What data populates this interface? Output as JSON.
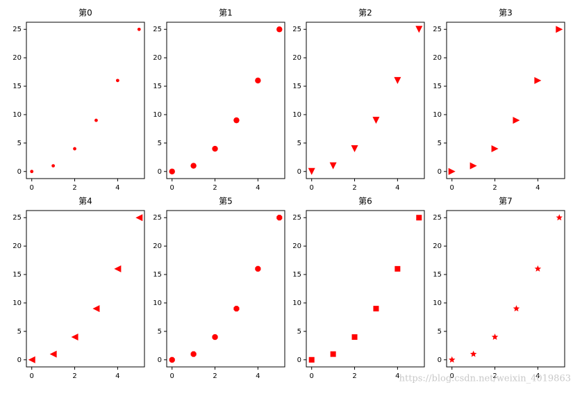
{
  "chart_data": [
    {
      "type": "scatter",
      "title": "第0",
      "marker": ".",
      "color": "#ff0000",
      "x": [
        0,
        1,
        2,
        3,
        4,
        5
      ],
      "values": [
        0,
        1,
        4,
        9,
        16,
        25
      ],
      "xlim": [
        -0.25,
        5.25
      ],
      "ylim": [
        -1.25,
        26.25
      ],
      "xticks": [
        0,
        2,
        4
      ],
      "yticks": [
        0,
        5,
        10,
        15,
        20,
        25
      ]
    },
    {
      "type": "scatter",
      "title": "第1",
      "marker": "o",
      "color": "#ff0000",
      "x": [
        0,
        1,
        2,
        3,
        4,
        5
      ],
      "values": [
        0,
        1,
        4,
        9,
        16,
        25
      ],
      "xlim": [
        -0.25,
        5.25
      ],
      "ylim": [
        -1.25,
        26.25
      ],
      "xticks": [
        0,
        2,
        4
      ],
      "yticks": [
        0,
        5,
        10,
        15,
        20,
        25
      ]
    },
    {
      "type": "scatter",
      "title": "第2",
      "marker": "v",
      "color": "#ff0000",
      "x": [
        0,
        1,
        2,
        3,
        4,
        5
      ],
      "values": [
        0,
        1,
        4,
        9,
        16,
        25
      ],
      "xlim": [
        -0.25,
        5.25
      ],
      "ylim": [
        -1.25,
        26.25
      ],
      "xticks": [
        0,
        2,
        4
      ],
      "yticks": [
        0,
        5,
        10,
        15,
        20,
        25
      ]
    },
    {
      "type": "scatter",
      "title": "第3",
      "marker": ">",
      "color": "#ff0000",
      "x": [
        0,
        1,
        2,
        3,
        4,
        5
      ],
      "values": [
        0,
        1,
        4,
        9,
        16,
        25
      ],
      "xlim": [
        -0.25,
        5.25
      ],
      "ylim": [
        -1.25,
        26.25
      ],
      "xticks": [
        0,
        2,
        4
      ],
      "yticks": [
        0,
        5,
        10,
        15,
        20,
        25
      ]
    },
    {
      "type": "scatter",
      "title": "第4",
      "marker": "<",
      "color": "#ff0000",
      "x": [
        0,
        1,
        2,
        3,
        4,
        5
      ],
      "values": [
        0,
        1,
        4,
        9,
        16,
        25
      ],
      "xlim": [
        -0.25,
        5.25
      ],
      "ylim": [
        -1.25,
        26.25
      ],
      "xticks": [
        0,
        2,
        4
      ],
      "yticks": [
        0,
        5,
        10,
        15,
        20,
        25
      ]
    },
    {
      "type": "scatter",
      "title": "第5",
      "marker": "8",
      "color": "#ff0000",
      "x": [
        0,
        1,
        2,
        3,
        4,
        5
      ],
      "values": [
        0,
        1,
        4,
        9,
        16,
        25
      ],
      "xlim": [
        -0.25,
        5.25
      ],
      "ylim": [
        -1.25,
        26.25
      ],
      "xticks": [
        0,
        2,
        4
      ],
      "yticks": [
        0,
        5,
        10,
        15,
        20,
        25
      ]
    },
    {
      "type": "scatter",
      "title": "第6",
      "marker": "s",
      "color": "#ff0000",
      "x": [
        0,
        1,
        2,
        3,
        4,
        5
      ],
      "values": [
        0,
        1,
        4,
        9,
        16,
        25
      ],
      "xlim": [
        -0.25,
        5.25
      ],
      "ylim": [
        -1.25,
        26.25
      ],
      "xticks": [
        0,
        2,
        4
      ],
      "yticks": [
        0,
        5,
        10,
        15,
        20,
        25
      ]
    },
    {
      "type": "scatter",
      "title": "第7",
      "marker": "*",
      "color": "#ff0000",
      "x": [
        0,
        1,
        2,
        3,
        4,
        5
      ],
      "values": [
        0,
        1,
        4,
        9,
        16,
        25
      ],
      "xlim": [
        -0.25,
        5.25
      ],
      "ylim": [
        -1.25,
        26.25
      ],
      "xticks": [
        0,
        2,
        4
      ],
      "yticks": [
        0,
        5,
        10,
        15,
        20,
        25
      ]
    }
  ],
  "watermark": "https://blog.csdn.net/weixin_4019863"
}
